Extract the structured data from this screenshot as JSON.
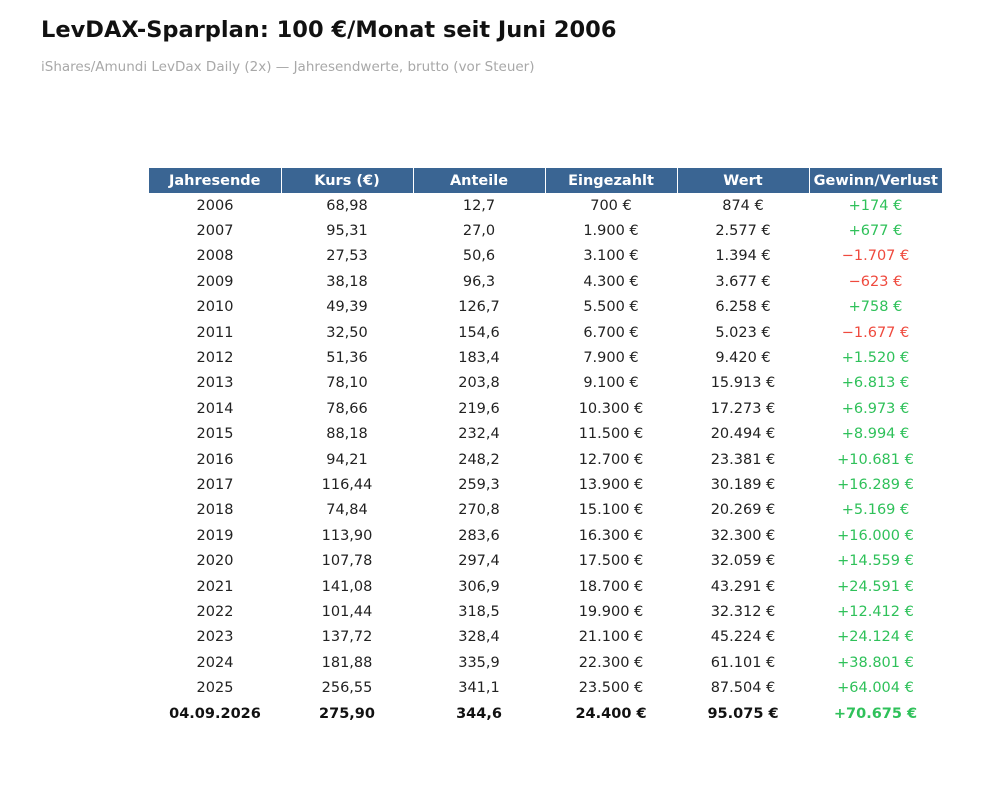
{
  "title": "LevDAX-Sparplan: 100 €/Monat seit Juni 2006",
  "subtitle": "iShares/Amundi LevDax Daily (2x) — Jahresendwerte, brutto (vor Steuer)",
  "colors": {
    "header_bg": "#3a6593",
    "positive": "#2fc15a",
    "negative": "#ef4a3e"
  },
  "chart_data": {
    "type": "table",
    "columns": [
      "Jahresende",
      "Kurs (€)",
      "Anteile",
      "Eingezahlt",
      "Wert",
      "Gewinn/Verlust"
    ],
    "rows": [
      [
        "2006",
        "68,98",
        "12,7",
        "700 €",
        "874 €",
        "+174 €"
      ],
      [
        "2007",
        "95,31",
        "27,0",
        "1.900 €",
        "2.577 €",
        "+677 €"
      ],
      [
        "2008",
        "27,53",
        "50,6",
        "3.100 €",
        "1.394 €",
        "−1.707 €"
      ],
      [
        "2009",
        "38,18",
        "96,3",
        "4.300 €",
        "3.677 €",
        "−623 €"
      ],
      [
        "2010",
        "49,39",
        "126,7",
        "5.500 €",
        "6.258 €",
        "+758 €"
      ],
      [
        "2011",
        "32,50",
        "154,6",
        "6.700 €",
        "5.023 €",
        "−1.677 €"
      ],
      [
        "2012",
        "51,36",
        "183,4",
        "7.900 €",
        "9.420 €",
        "+1.520 €"
      ],
      [
        "2013",
        "78,10",
        "203,8",
        "9.100 €",
        "15.913 €",
        "+6.813 €"
      ],
      [
        "2014",
        "78,66",
        "219,6",
        "10.300 €",
        "17.273 €",
        "+6.973 €"
      ],
      [
        "2015",
        "88,18",
        "232,4",
        "11.500 €",
        "20.494 €",
        "+8.994 €"
      ],
      [
        "2016",
        "94,21",
        "248,2",
        "12.700 €",
        "23.381 €",
        "+10.681 €"
      ],
      [
        "2017",
        "116,44",
        "259,3",
        "13.900 €",
        "30.189 €",
        "+16.289 €"
      ],
      [
        "2018",
        "74,84",
        "270,8",
        "15.100 €",
        "20.269 €",
        "+5.169 €"
      ],
      [
        "2019",
        "113,90",
        "283,6",
        "16.300 €",
        "32.300 €",
        "+16.000 €"
      ],
      [
        "2020",
        "107,78",
        "297,4",
        "17.500 €",
        "32.059 €",
        "+14.559 €"
      ],
      [
        "2021",
        "141,08",
        "306,9",
        "18.700 €",
        "43.291 €",
        "+24.591 €"
      ],
      [
        "2022",
        "101,44",
        "318,5",
        "19.900 €",
        "32.312 €",
        "+12.412 €"
      ],
      [
        "2023",
        "137,72",
        "328,4",
        "21.100 €",
        "45.224 €",
        "+24.124 €"
      ],
      [
        "2024",
        "181,88",
        "335,9",
        "22.300 €",
        "61.101 €",
        "+38.801 €"
      ],
      [
        "2025",
        "256,55",
        "341,1",
        "23.500 €",
        "87.504 €",
        "+64.004 €"
      ]
    ],
    "total_row": [
      "04.09.2026",
      "275,90",
      "344,6",
      "24.400 €",
      "95.075 €",
      "+70.675 €"
    ]
  }
}
